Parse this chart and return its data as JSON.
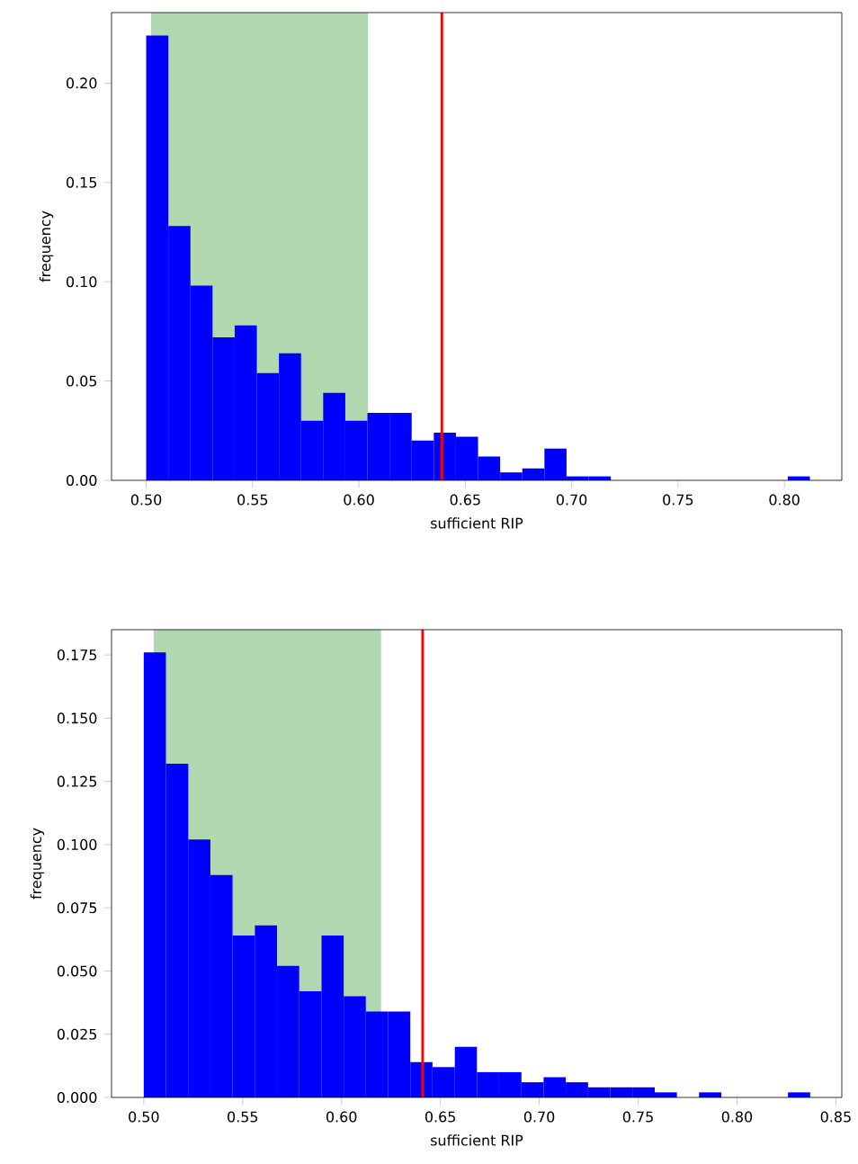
{
  "chart_data": [
    {
      "type": "histogram",
      "xlabel": "sufficient RIP",
      "ylabel": "frequency",
      "color": "#0000ff",
      "bins": [
        0.5,
        0.5104,
        0.5208,
        0.5312,
        0.5416,
        0.552,
        0.5624,
        0.5728,
        0.5832,
        0.5936,
        0.604,
        0.6144,
        0.6248,
        0.6352,
        0.6456,
        0.656,
        0.6664,
        0.6768,
        0.6872,
        0.6976,
        0.708,
        0.7184,
        0.7288,
        0.7392,
        0.7496,
        0.76,
        0.7704,
        0.7808,
        0.7912,
        0.8016,
        0.812
      ],
      "values": [
        0.224,
        0.128,
        0.098,
        0.072,
        0.078,
        0.054,
        0.064,
        0.03,
        0.044,
        0.03,
        0.034,
        0.034,
        0.02,
        0.024,
        0.022,
        0.012,
        0.004,
        0.006,
        0.016,
        0.002,
        0.002,
        0,
        0,
        0,
        0,
        0,
        0,
        0,
        0,
        0.002
      ],
      "xlim": [
        0.4837,
        0.827
      ],
      "ylim": [
        0,
        0.2355
      ],
      "xticks": [
        {
          "value": 0.5,
          "label": "0.50"
        },
        {
          "value": 0.55,
          "label": "0.55"
        },
        {
          "value": 0.6,
          "label": "0.60"
        },
        {
          "value": 0.65,
          "label": "0.65"
        },
        {
          "value": 0.7,
          "label": "0.70"
        },
        {
          "value": 0.75,
          "label": "0.75"
        },
        {
          "value": 0.8,
          "label": "0.80"
        }
      ],
      "yticks": [
        {
          "value": 0,
          "label": "0.00"
        },
        {
          "value": 0.05,
          "label": "0.05"
        },
        {
          "value": 0.1,
          "label": "0.10"
        },
        {
          "value": 0.15,
          "label": "0.15"
        },
        {
          "value": 0.2,
          "label": "0.20"
        }
      ],
      "bands": [
        {
          "axis": "x",
          "from": 0.5023,
          "to": 0.6043,
          "color": "#b2d8b2"
        }
      ],
      "ref_lines": [
        {
          "axis": "x",
          "value": 0.639,
          "color": "#ff0000"
        }
      ]
    },
    {
      "type": "histogram",
      "xlabel": "sufficient RIP",
      "ylabel": "frequency",
      "color": "#0000ff",
      "bins": [
        0.5,
        0.5112,
        0.5225,
        0.5337,
        0.5449,
        0.5562,
        0.5674,
        0.5786,
        0.5899,
        0.6011,
        0.6123,
        0.6236,
        0.6348,
        0.646,
        0.6573,
        0.6685,
        0.6797,
        0.691,
        0.7022,
        0.7134,
        0.7247,
        0.7359,
        0.7471,
        0.7584,
        0.7696,
        0.7808,
        0.7921,
        0.8033,
        0.8145,
        0.8258,
        0.837
      ],
      "values": [
        0.176,
        0.132,
        0.102,
        0.088,
        0.064,
        0.068,
        0.052,
        0.042,
        0.064,
        0.04,
        0.034,
        0.034,
        0.014,
        0.012,
        0.02,
        0.01,
        0.01,
        0.006,
        0.008,
        0.006,
        0.004,
        0.004,
        0.004,
        0.002,
        0,
        0.002,
        0,
        0,
        0,
        0.002
      ],
      "xlim": [
        0.4837,
        0.853
      ],
      "ylim": [
        0,
        0.185
      ],
      "xticks": [
        {
          "value": 0.5,
          "label": "0.50"
        },
        {
          "value": 0.55,
          "label": "0.55"
        },
        {
          "value": 0.6,
          "label": "0.60"
        },
        {
          "value": 0.65,
          "label": "0.65"
        },
        {
          "value": 0.7,
          "label": "0.70"
        },
        {
          "value": 0.75,
          "label": "0.75"
        },
        {
          "value": 0.8,
          "label": "0.80"
        },
        {
          "value": 0.85,
          "label": "0.85"
        }
      ],
      "yticks": [
        {
          "value": 0,
          "label": "0.000"
        },
        {
          "value": 0.025,
          "label": "0.025"
        },
        {
          "value": 0.05,
          "label": "0.050"
        },
        {
          "value": 0.075,
          "label": "0.075"
        },
        {
          "value": 0.1,
          "label": "0.100"
        },
        {
          "value": 0.125,
          "label": "0.125"
        },
        {
          "value": 0.15,
          "label": "0.150"
        },
        {
          "value": 0.175,
          "label": "0.175"
        }
      ],
      "bands": [
        {
          "axis": "x",
          "from": 0.505,
          "to": 0.62,
          "color": "#b2d8b2"
        }
      ],
      "ref_lines": [
        {
          "axis": "x",
          "value": 0.641,
          "color": "#ff0000"
        }
      ]
    }
  ]
}
